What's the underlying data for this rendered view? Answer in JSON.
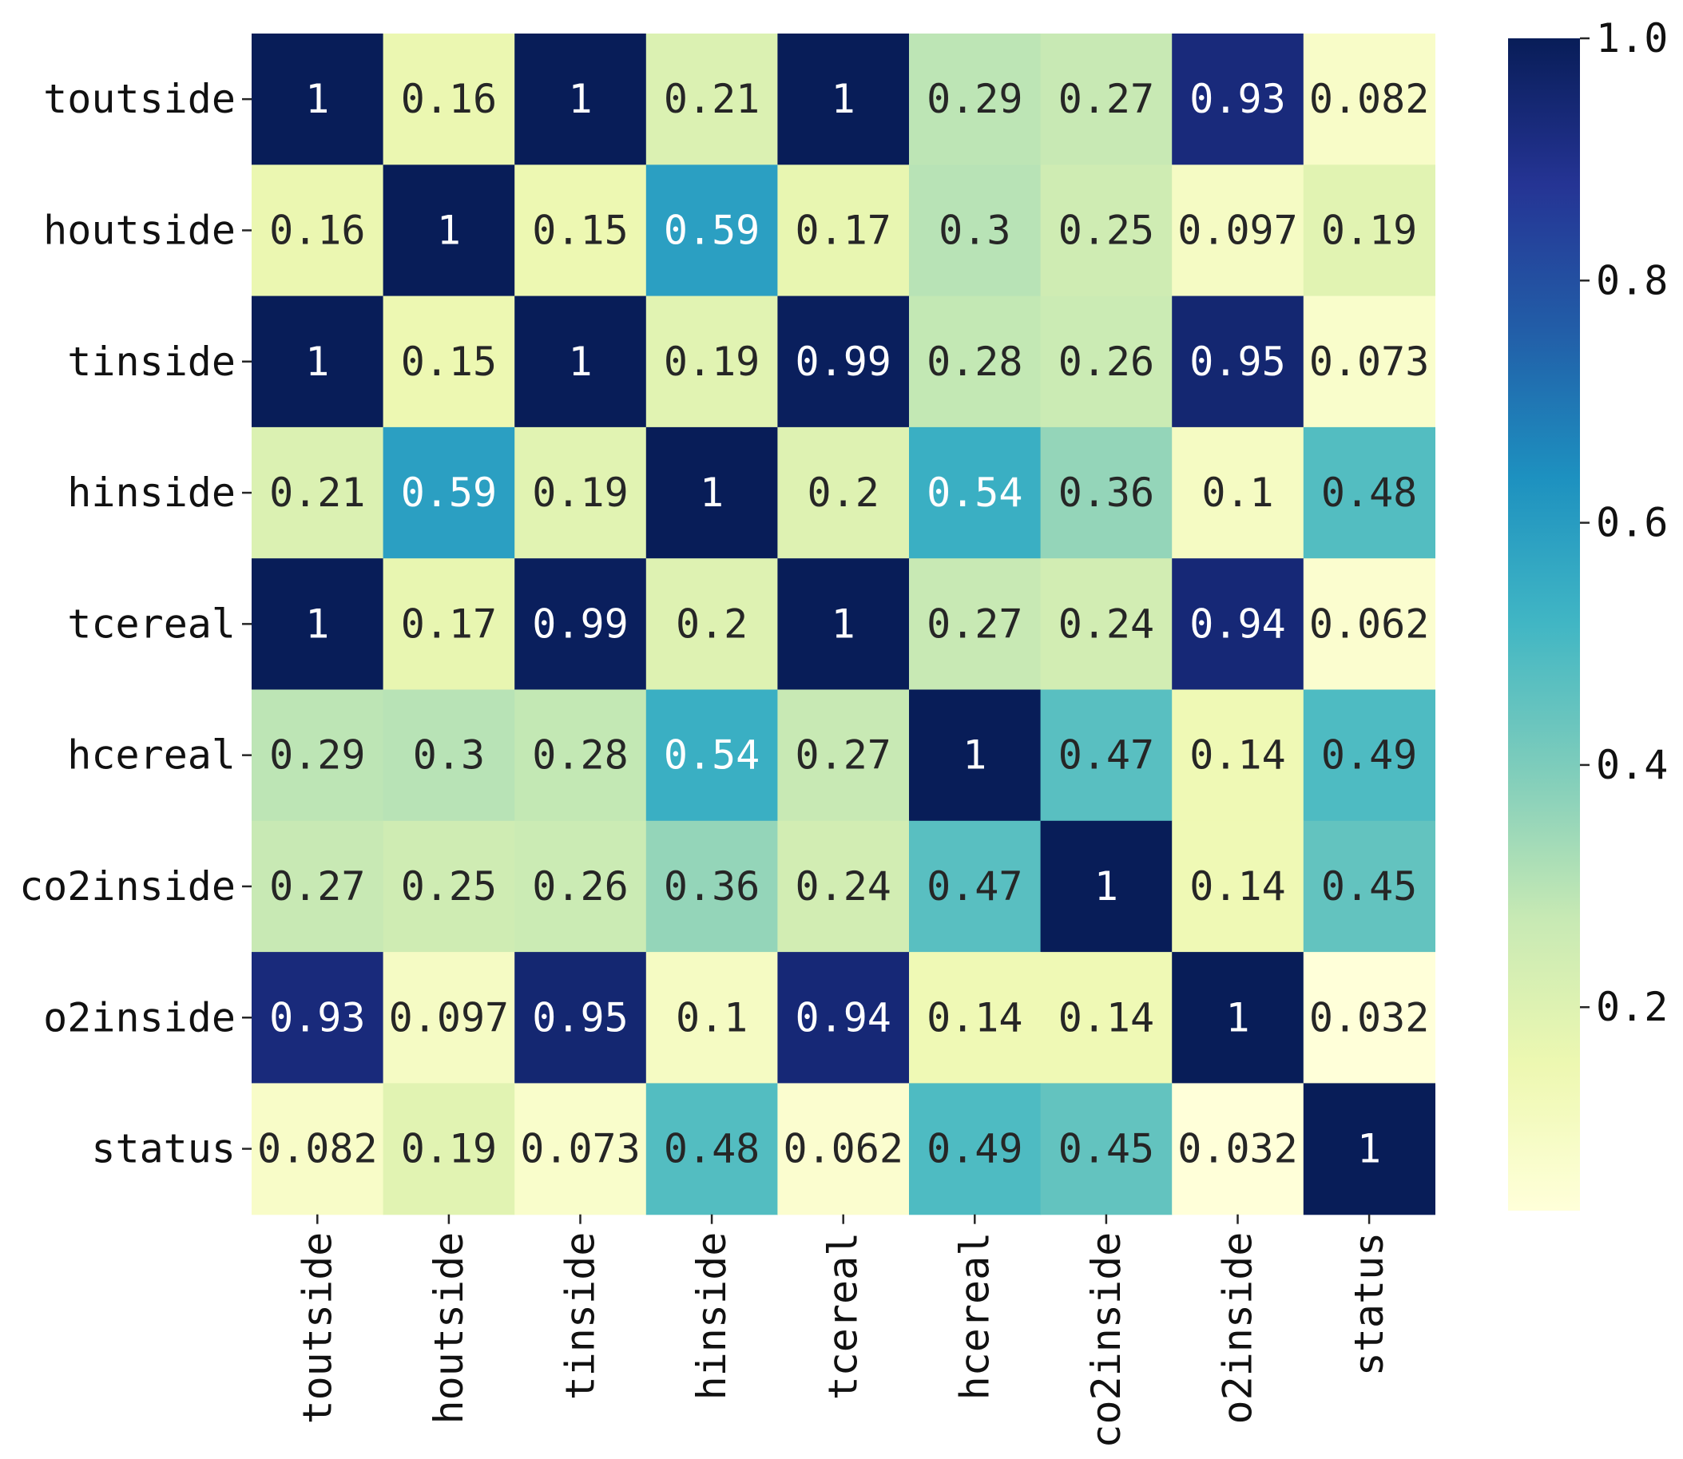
{
  "chart_data": {
    "type": "heatmap",
    "title": "",
    "xlabel": "",
    "ylabel": "",
    "row_labels": [
      "toutside",
      "houtside",
      "tinside",
      "hinside",
      "tcereal",
      "hcereal",
      "co2inside",
      "o2inside",
      "status"
    ],
    "col_labels": [
      "toutside",
      "houtside",
      "tinside",
      "hinside",
      "tcereal",
      "hcereal",
      "co2inside",
      "o2inside",
      "status"
    ],
    "values": [
      [
        1,
        0.16,
        1,
        0.21,
        1,
        0.29,
        0.27,
        0.93,
        0.082
      ],
      [
        0.16,
        1,
        0.15,
        0.59,
        0.17,
        0.3,
        0.25,
        0.097,
        0.19
      ],
      [
        1,
        0.15,
        1,
        0.19,
        0.99,
        0.28,
        0.26,
        0.95,
        0.073
      ],
      [
        0.21,
        0.59,
        0.19,
        1,
        0.2,
        0.54,
        0.36,
        0.1,
        0.48
      ],
      [
        1,
        0.17,
        0.99,
        0.2,
        1,
        0.27,
        0.24,
        0.94,
        0.062
      ],
      [
        0.29,
        0.3,
        0.28,
        0.54,
        0.27,
        1,
        0.47,
        0.14,
        0.49
      ],
      [
        0.27,
        0.25,
        0.26,
        0.36,
        0.24,
        0.47,
        1,
        0.14,
        0.45
      ],
      [
        0.93,
        0.097,
        0.95,
        0.1,
        0.94,
        0.14,
        0.14,
        1,
        0.032
      ],
      [
        0.082,
        0.19,
        0.073,
        0.48,
        0.062,
        0.49,
        0.45,
        0.032,
        1
      ]
    ],
    "annotations": [
      [
        "1",
        "0.16",
        "1",
        "0.21",
        "1",
        "0.29",
        "0.27",
        "0.93",
        "0.082"
      ],
      [
        "0.16",
        "1",
        "0.15",
        "0.59",
        "0.17",
        "0.3",
        "0.25",
        "0.097",
        "0.19"
      ],
      [
        "1",
        "0.15",
        "1",
        "0.19",
        "0.99",
        "0.28",
        "0.26",
        "0.95",
        "0.073"
      ],
      [
        "0.21",
        "0.59",
        "0.19",
        "1",
        "0.2",
        "0.54",
        "0.36",
        "0.1",
        "0.48"
      ],
      [
        "1",
        "0.17",
        "0.99",
        "0.2",
        "1",
        "0.27",
        "0.24",
        "0.94",
        "0.062"
      ],
      [
        "0.29",
        "0.3",
        "0.28",
        "0.54",
        "0.27",
        "1",
        "0.47",
        "0.14",
        "0.49"
      ],
      [
        "0.27",
        "0.25",
        "0.26",
        "0.36",
        "0.24",
        "0.47",
        "1",
        "0.14",
        "0.45"
      ],
      [
        "0.93",
        "0.097",
        "0.95",
        "0.1",
        "0.94",
        "0.14",
        "0.14",
        "1",
        "0.032"
      ],
      [
        "0.082",
        "0.19",
        "0.073",
        "0.48",
        "0.062",
        "0.49",
        "0.45",
        "0.032",
        "1"
      ]
    ],
    "colormap": "YlGnBu",
    "color_range": [
      0.032,
      1.0
    ],
    "colorbar_ticks": [
      0.2,
      0.4,
      0.6,
      0.8,
      1.0
    ],
    "colorbar_tick_labels": [
      "0.2",
      "0.4",
      "0.6",
      "0.8",
      "1.0"
    ],
    "grid": false,
    "legend": "colorbar-right"
  }
}
